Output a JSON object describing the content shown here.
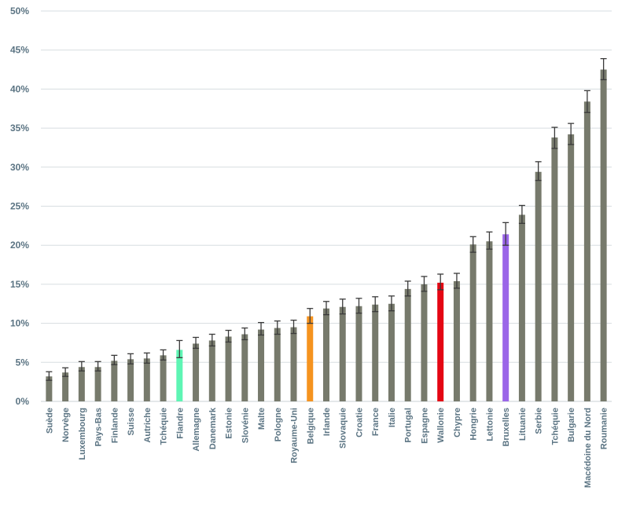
{
  "chart_data": {
    "type": "bar",
    "title": "",
    "xlabel": "",
    "ylabel": "",
    "ylim": [
      0,
      50
    ],
    "y_ticks": [
      0,
      5,
      10,
      15,
      20,
      25,
      30,
      35,
      40,
      45,
      50
    ],
    "y_tick_labels": [
      "0%",
      "5%",
      "10%",
      "15%",
      "20%",
      "25%",
      "30%",
      "35%",
      "40%",
      "45%",
      "50%"
    ],
    "grid": true,
    "legend": "none",
    "default_color": "#777a6c",
    "categories": [
      "Suède",
      "Norvège",
      "Luxembourg",
      "Pays-Bas",
      "Finlande",
      "Suisse",
      "Autriche",
      "Tchéquie",
      "Flandre",
      "Allemagne",
      "Danemark",
      "Estonie",
      "Slovénie",
      "Malte",
      "Pologne",
      "Royaume-Uni",
      "Belgique",
      "Irlande",
      "Slovaquie",
      "Croatie",
      "France",
      "Italie",
      "Portugal",
      "Espagne",
      "Wallonie",
      "Chypre",
      "Hongrie",
      "Lettonie",
      "Bruxelles",
      "Lituanie",
      "Serbie",
      "Tchéquie",
      "Bulgarie",
      "Macédoine du Nord",
      "Roumanie"
    ],
    "values": [
      3.2,
      3.7,
      4.4,
      4.4,
      5.2,
      5.4,
      5.5,
      5.9,
      6.6,
      7.4,
      7.8,
      8.3,
      8.6,
      9.2,
      9.4,
      9.5,
      10.9,
      11.9,
      12.1,
      12.2,
      12.4,
      12.5,
      14.4,
      15.0,
      15.2,
      15.4,
      20.1,
      20.5,
      21.4,
      23.9,
      29.4,
      33.8,
      34.2,
      38.4,
      42.5
    ],
    "error_low": [
      2.7,
      3.2,
      3.9,
      3.9,
      4.7,
      4.8,
      4.9,
      5.3,
      5.6,
      6.8,
      7.1,
      7.6,
      7.9,
      8.5,
      8.6,
      8.7,
      10.0,
      11.1,
      11.2,
      11.3,
      11.5,
      11.6,
      13.5,
      14.1,
      14.3,
      14.5,
      19.1,
      19.5,
      20.0,
      22.8,
      28.3,
      32.4,
      32.9,
      37.0,
      41.2
    ],
    "error_high": [
      3.8,
      4.3,
      5.1,
      5.1,
      5.9,
      6.1,
      6.2,
      6.6,
      7.8,
      8.2,
      8.6,
      9.1,
      9.4,
      10.1,
      10.3,
      10.4,
      11.9,
      12.8,
      13.1,
      13.2,
      13.4,
      13.5,
      15.4,
      16.0,
      16.3,
      16.4,
      21.1,
      21.7,
      22.9,
      25.1,
      30.7,
      35.1,
      35.6,
      39.8,
      43.9
    ],
    "highlight_colors": {
      "Flandre": "#5ef5b4",
      "Belgique": "#f5931f",
      "Wallonie": "#e40613",
      "Bruxelles": "#9a66e8"
    }
  }
}
